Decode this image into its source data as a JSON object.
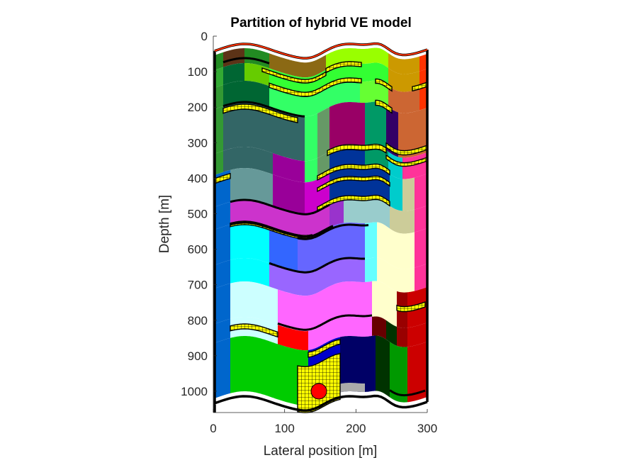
{
  "title": "Partition of hybrid VE model",
  "xlabel": "Lateral position [m]",
  "ylabel": "Depth [m]",
  "xticks": [
    "0",
    "100",
    "200",
    "300"
  ],
  "yticks": [
    "0",
    "100",
    "200",
    "300",
    "400",
    "500",
    "600",
    "700",
    "800",
    "900",
    "1000"
  ],
  "chart_data": {
    "type": "other",
    "title": "Partition of hybrid VE model",
    "xlabel": "Lateral position [m]",
    "ylabel": "Depth [m]",
    "xlim": [
      0,
      300
    ],
    "ylim": [
      0,
      1060
    ],
    "y_reversed": true,
    "well_marker": {
      "x": 148,
      "y": 1000,
      "color": "#ff0000"
    },
    "fine_grid_color": "#ffff00"
  }
}
